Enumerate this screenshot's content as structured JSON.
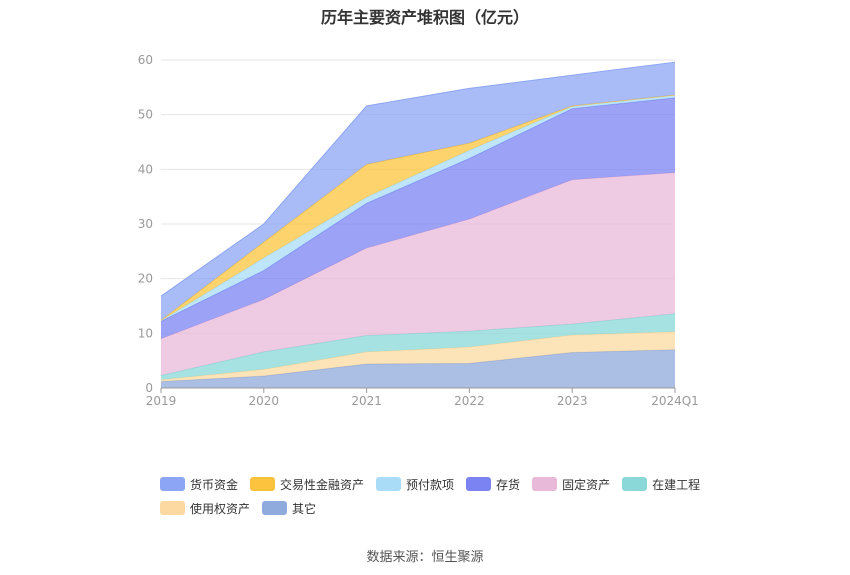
{
  "chart_data": {
    "type": "area",
    "stacked": true,
    "title": "历年主要资产堆积图（亿元）",
    "categories": [
      "2019",
      "2020",
      "2021",
      "2022",
      "2023",
      "2024Q1"
    ],
    "yticks": [
      "0",
      "10",
      "20",
      "30",
      "40",
      "50",
      "60"
    ],
    "ylim": [
      0,
      60
    ],
    "grid": true,
    "legend_position": "bottom",
    "series": [
      {
        "name": "其它",
        "color": "#8faadc",
        "values": [
          1.2,
          2.2,
          4.4,
          4.5,
          6.5,
          7.0
        ]
      },
      {
        "name": "使用权资产",
        "color": "#fcd9a0",
        "values": [
          0.3,
          1.2,
          2.2,
          3.0,
          3.2,
          3.3
        ]
      },
      {
        "name": "在建工程",
        "color": "#8ad8d8",
        "values": [
          0.8,
          3.2,
          3.0,
          2.9,
          2.0,
          3.3
        ]
      },
      {
        "name": "固定资产",
        "color": "#e8b9d8",
        "values": [
          6.7,
          9.6,
          16.0,
          20.5,
          26.4,
          25.8
        ]
      },
      {
        "name": "存货",
        "color": "#7b83f3",
        "values": [
          3.2,
          5.3,
          8.2,
          11.1,
          13.0,
          13.7
        ]
      },
      {
        "name": "预付款项",
        "color": "#a8dcf7",
        "values": [
          0.1,
          2.3,
          1.1,
          1.5,
          0.4,
          0.5
        ]
      },
      {
        "name": "交易性金融资产",
        "color": "#fcc43e",
        "values": [
          0.1,
          2.9,
          6.0,
          1.3,
          0.1,
          0.0
        ]
      },
      {
        "name": "货币资金",
        "color": "#8ca5f5",
        "values": [
          4.4,
          3.3,
          10.7,
          10.0,
          5.6,
          6.0
        ]
      }
    ],
    "legend_order": [
      "货币资金",
      "交易性金融资产",
      "预付款项",
      "存货",
      "固定资产",
      "在建工程",
      "使用权资产",
      "其它"
    ]
  },
  "source": "数据来源：恒生聚源"
}
